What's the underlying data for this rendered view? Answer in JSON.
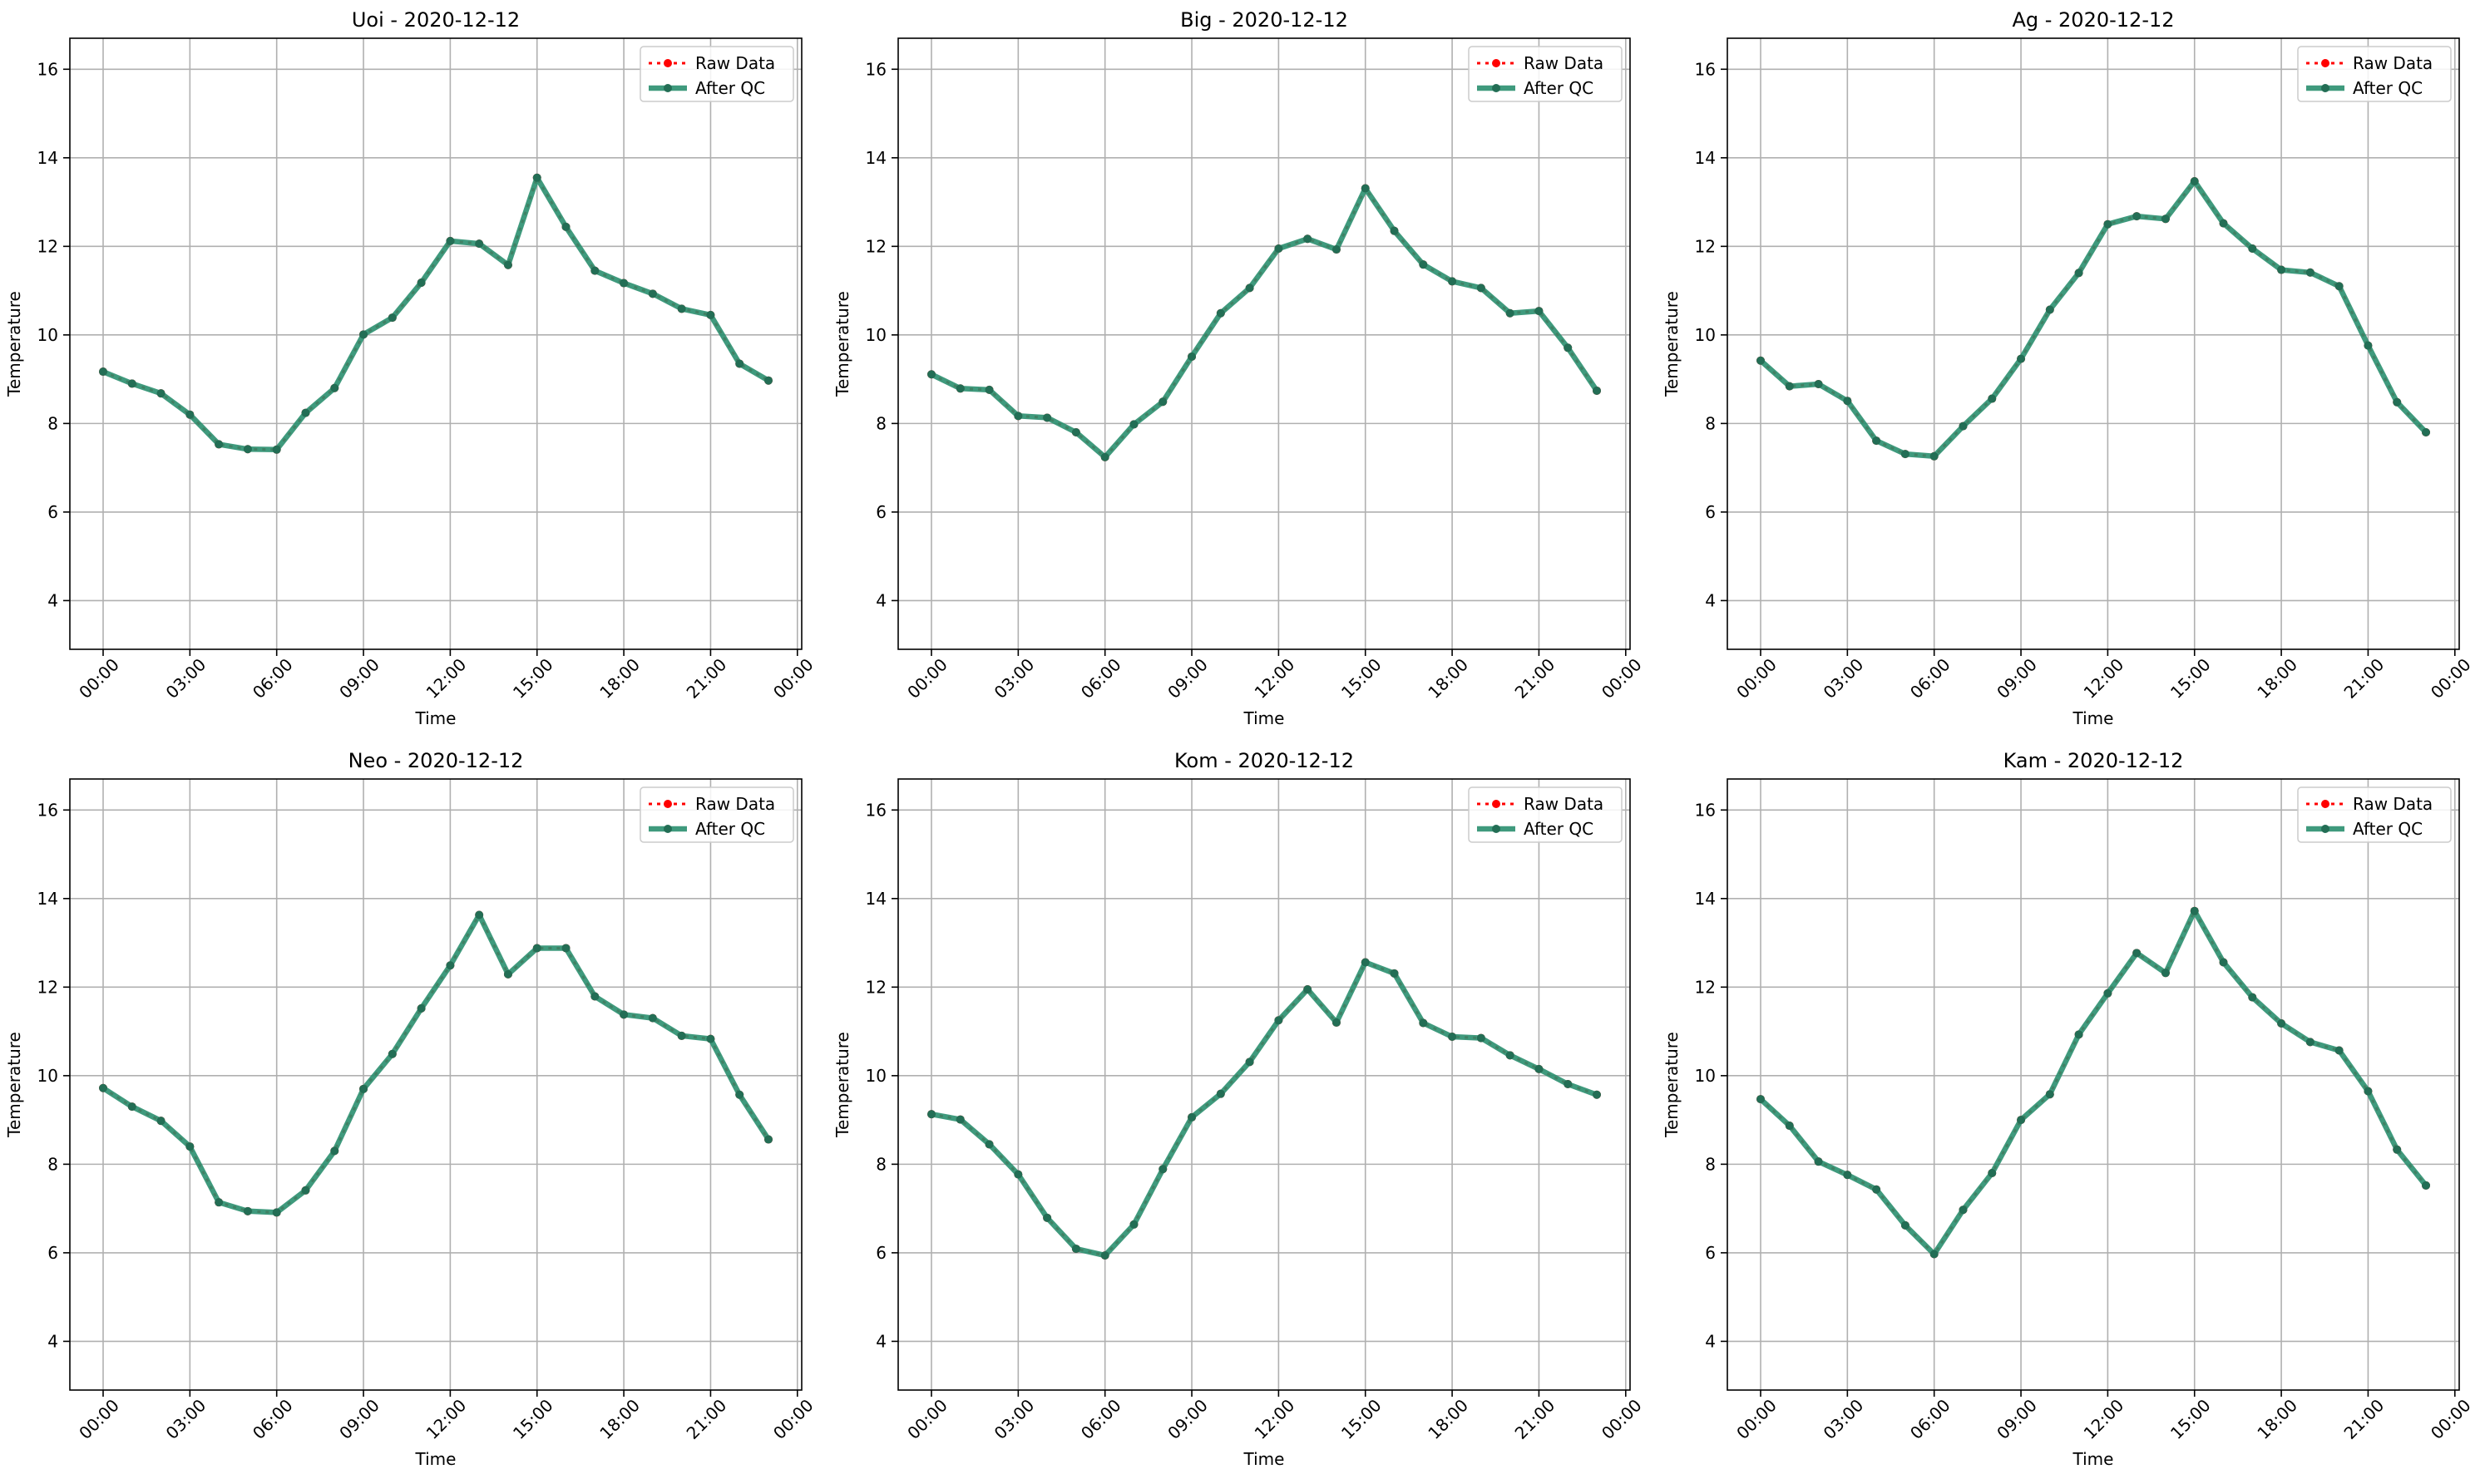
{
  "figure": {
    "legend_labels": {
      "raw": "Raw Data",
      "qc": "After QC"
    },
    "colors": {
      "raw": "#ff0000",
      "qc": "#2a8f6f",
      "grid": "#b0b0b0",
      "axis": "#000000"
    },
    "legend_position": "upper right",
    "grid": true
  },
  "chart_data": [
    {
      "type": "line",
      "title": "Uoi - 2020-12-12",
      "xlabel": "Time",
      "ylabel": "Temperature",
      "x_ticks": [
        "00:00",
        "03:00",
        "06:00",
        "09:00",
        "12:00",
        "15:00",
        "18:00",
        "21:00",
        "00:00"
      ],
      "y_ticks": [
        "4",
        "6",
        "8",
        "10",
        "12",
        "14",
        "16"
      ],
      "ylim": [
        2.9,
        16.7
      ],
      "xlim": [
        "2020-12-11 22:51",
        "2020-12-13 00:09"
      ],
      "x": [
        "00:00",
        "01:00",
        "02:00",
        "03:00",
        "04:00",
        "05:00",
        "06:00",
        "07:00",
        "08:00",
        "09:00",
        "10:00",
        "11:00",
        "12:00",
        "13:00",
        "14:00",
        "15:00",
        "16:00",
        "17:00",
        "18:00",
        "19:00",
        "20:00",
        "21:00",
        "22:00",
        "23:00"
      ],
      "series": [
        {
          "name": "Raw Data",
          "values": [
            9.17,
            8.9,
            8.68,
            8.2,
            7.53,
            7.42,
            7.41,
            8.24,
            8.8,
            10.01,
            10.39,
            11.18,
            12.12,
            12.06,
            11.58,
            13.55,
            12.44,
            11.45,
            11.17,
            10.93,
            10.59,
            10.45,
            9.35,
            8.97
          ]
        },
        {
          "name": "After QC",
          "values": [
            9.17,
            8.9,
            8.68,
            8.2,
            7.53,
            7.42,
            7.41,
            8.24,
            8.8,
            10.01,
            10.39,
            11.18,
            12.12,
            12.06,
            11.58,
            13.55,
            12.44,
            11.45,
            11.17,
            10.93,
            10.59,
            10.45,
            9.35,
            8.97
          ]
        }
      ]
    },
    {
      "type": "line",
      "title": "Big - 2020-12-12",
      "xlabel": "Time",
      "ylabel": "Temperature",
      "x_ticks": [
        "00:00",
        "03:00",
        "06:00",
        "09:00",
        "12:00",
        "15:00",
        "18:00",
        "21:00",
        "00:00"
      ],
      "y_ticks": [
        "4",
        "6",
        "8",
        "10",
        "12",
        "14",
        "16"
      ],
      "ylim": [
        2.9,
        16.7
      ],
      "xlim": [
        "2020-12-11 22:51",
        "2020-12-13 00:09"
      ],
      "x": [
        "00:00",
        "01:00",
        "02:00",
        "03:00",
        "04:00",
        "05:00",
        "06:00",
        "07:00",
        "08:00",
        "09:00",
        "10:00",
        "11:00",
        "12:00",
        "13:00",
        "14:00",
        "15:00",
        "16:00",
        "17:00",
        "18:00",
        "19:00",
        "20:00",
        "21:00",
        "22:00",
        "23:00"
      ],
      "series": [
        {
          "name": "Raw Data",
          "values": [
            9.11,
            8.79,
            8.76,
            8.17,
            8.13,
            7.8,
            7.24,
            7.98,
            8.49,
            9.51,
            10.49,
            11.06,
            11.95,
            12.17,
            11.93,
            13.31,
            12.35,
            11.59,
            11.21,
            11.06,
            10.49,
            10.54,
            9.71,
            8.74
          ]
        },
        {
          "name": "After QC",
          "values": [
            9.11,
            8.79,
            8.76,
            8.17,
            8.13,
            7.8,
            7.24,
            7.98,
            8.49,
            9.51,
            10.49,
            11.06,
            11.95,
            12.17,
            11.93,
            13.31,
            12.35,
            11.59,
            11.21,
            11.06,
            10.49,
            10.54,
            9.71,
            8.74
          ]
        }
      ]
    },
    {
      "type": "line",
      "title": "Ag - 2020-12-12",
      "xlabel": "Time",
      "ylabel": "Temperature",
      "x_ticks": [
        "00:00",
        "03:00",
        "06:00",
        "09:00",
        "12:00",
        "15:00",
        "18:00",
        "21:00",
        "00:00"
      ],
      "y_ticks": [
        "4",
        "6",
        "8",
        "10",
        "12",
        "14",
        "16"
      ],
      "ylim": [
        2.9,
        16.7
      ],
      "xlim": [
        "2020-12-11 22:51",
        "2020-12-13 00:09"
      ],
      "x": [
        "00:00",
        "01:00",
        "02:00",
        "03:00",
        "04:00",
        "05:00",
        "06:00",
        "07:00",
        "08:00",
        "09:00",
        "10:00",
        "11:00",
        "12:00",
        "13:00",
        "14:00",
        "15:00",
        "16:00",
        "17:00",
        "18:00",
        "19:00",
        "20:00",
        "21:00",
        "22:00",
        "23:00"
      ],
      "series": [
        {
          "name": "Raw Data",
          "values": [
            9.42,
            8.84,
            8.89,
            8.51,
            7.61,
            7.31,
            7.26,
            7.94,
            8.56,
            9.46,
            10.57,
            11.4,
            12.5,
            12.68,
            12.62,
            13.47,
            12.52,
            11.95,
            11.47,
            11.41,
            11.1,
            9.76,
            8.48,
            7.8
          ]
        },
        {
          "name": "After QC",
          "values": [
            9.42,
            8.84,
            8.89,
            8.51,
            7.61,
            7.31,
            7.26,
            7.94,
            8.56,
            9.46,
            10.57,
            11.4,
            12.5,
            12.68,
            12.62,
            13.47,
            12.52,
            11.95,
            11.47,
            11.41,
            11.1,
            9.76,
            8.48,
            7.8
          ]
        }
      ]
    },
    {
      "type": "line",
      "title": "Neo - 2020-12-12",
      "xlabel": "Time",
      "ylabel": "Temperature",
      "x_ticks": [
        "00:00",
        "03:00",
        "06:00",
        "09:00",
        "12:00",
        "15:00",
        "18:00",
        "21:00",
        "00:00"
      ],
      "y_ticks": [
        "4",
        "6",
        "8",
        "10",
        "12",
        "14",
        "16"
      ],
      "ylim": [
        2.9,
        16.7
      ],
      "xlim": [
        "2020-12-11 22:51",
        "2020-12-13 00:09"
      ],
      "x": [
        "00:00",
        "01:00",
        "02:00",
        "03:00",
        "04:00",
        "05:00",
        "06:00",
        "07:00",
        "08:00",
        "09:00",
        "10:00",
        "11:00",
        "12:00",
        "13:00",
        "14:00",
        "15:00",
        "16:00",
        "17:00",
        "18:00",
        "19:00",
        "20:00",
        "21:00",
        "22:00",
        "23:00"
      ],
      "series": [
        {
          "name": "Raw Data",
          "values": [
            9.72,
            9.3,
            8.98,
            8.4,
            7.14,
            6.94,
            6.91,
            7.41,
            8.3,
            9.7,
            10.49,
            11.52,
            12.49,
            13.63,
            12.29,
            12.88,
            12.88,
            11.79,
            11.38,
            11.3,
            10.9,
            10.83,
            9.57,
            8.56
          ]
        },
        {
          "name": "After QC",
          "values": [
            9.72,
            9.3,
            8.98,
            8.4,
            7.14,
            6.94,
            6.91,
            7.41,
            8.3,
            9.7,
            10.49,
            11.52,
            12.49,
            13.63,
            12.29,
            12.88,
            12.88,
            11.79,
            11.38,
            11.3,
            10.9,
            10.83,
            9.57,
            8.56
          ]
        }
      ]
    },
    {
      "type": "line",
      "title": "Kom - 2020-12-12",
      "xlabel": "Time",
      "ylabel": "Temperature",
      "x_ticks": [
        "00:00",
        "03:00",
        "06:00",
        "09:00",
        "12:00",
        "15:00",
        "18:00",
        "21:00",
        "00:00"
      ],
      "y_ticks": [
        "4",
        "6",
        "8",
        "10",
        "12",
        "14",
        "16"
      ],
      "ylim": [
        2.9,
        16.7
      ],
      "xlim": [
        "2020-12-11 22:51",
        "2020-12-13 00:09"
      ],
      "x": [
        "00:00",
        "01:00",
        "02:00",
        "03:00",
        "04:00",
        "05:00",
        "06:00",
        "07:00",
        "08:00",
        "09:00",
        "10:00",
        "11:00",
        "12:00",
        "13:00",
        "14:00",
        "15:00",
        "16:00",
        "17:00",
        "18:00",
        "19:00",
        "20:00",
        "21:00",
        "22:00",
        "23:00"
      ],
      "series": [
        {
          "name": "Raw Data",
          "values": [
            9.13,
            9.01,
            8.45,
            7.77,
            6.79,
            6.09,
            5.94,
            6.64,
            7.89,
            9.06,
            9.59,
            10.31,
            11.25,
            11.95,
            11.2,
            12.56,
            12.31,
            11.19,
            10.88,
            10.85,
            10.46,
            10.15,
            9.81,
            9.57
          ]
        },
        {
          "name": "After QC",
          "values": [
            9.13,
            9.01,
            8.45,
            7.77,
            6.79,
            6.09,
            5.94,
            6.64,
            7.89,
            9.06,
            9.59,
            10.31,
            11.25,
            11.95,
            11.2,
            12.56,
            12.31,
            11.19,
            10.88,
            10.85,
            10.46,
            10.15,
            9.81,
            9.57
          ]
        }
      ]
    },
    {
      "type": "line",
      "title": "Kam - 2020-12-12",
      "xlabel": "Time",
      "ylabel": "Temperature",
      "x_ticks": [
        "00:00",
        "03:00",
        "06:00",
        "09:00",
        "12:00",
        "15:00",
        "18:00",
        "21:00",
        "00:00"
      ],
      "y_ticks": [
        "4",
        "6",
        "8",
        "10",
        "12",
        "14",
        "16"
      ],
      "ylim": [
        2.9,
        16.7
      ],
      "xlim": [
        "2020-12-11 22:51",
        "2020-12-13 00:09"
      ],
      "x": [
        "00:00",
        "01:00",
        "02:00",
        "03:00",
        "04:00",
        "05:00",
        "06:00",
        "07:00",
        "08:00",
        "09:00",
        "10:00",
        "11:00",
        "12:00",
        "13:00",
        "14:00",
        "15:00",
        "16:00",
        "17:00",
        "18:00",
        "19:00",
        "20:00",
        "21:00",
        "22:00",
        "23:00"
      ],
      "series": [
        {
          "name": "Raw Data",
          "values": [
            9.47,
            8.87,
            8.06,
            7.76,
            7.43,
            6.62,
            5.97,
            6.97,
            7.8,
            9.0,
            9.58,
            10.93,
            11.86,
            12.77,
            12.32,
            13.72,
            12.56,
            11.77,
            11.18,
            10.76,
            10.57,
            9.65,
            8.33,
            7.52
          ]
        },
        {
          "name": "After QC",
          "values": [
            9.47,
            8.87,
            8.06,
            7.76,
            7.43,
            6.62,
            5.97,
            6.97,
            7.8,
            9.0,
            9.58,
            10.93,
            11.86,
            12.77,
            12.32,
            13.72,
            12.56,
            11.77,
            11.18,
            10.76,
            10.57,
            9.65,
            8.33,
            7.52
          ]
        }
      ]
    }
  ]
}
